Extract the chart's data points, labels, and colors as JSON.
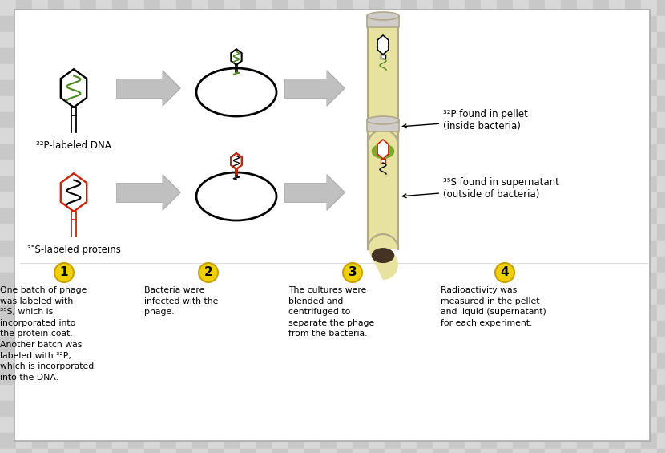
{
  "checker_light": "#d8d8d8",
  "checker_dark": "#c8c8c8",
  "panel_bg": "#ffffff",
  "border_color": "#999999",
  "arrow_color": "#b8b8b8",
  "black": "#000000",
  "red": "#cc2200",
  "green_dna": "#4a8a20",
  "yellow_circle": "#f0d000",
  "yellow_border": "#c8a000",
  "tube_fill": "#e8e2a0",
  "tube_border": "#b0a888",
  "tube_cap": "#d0cccc",
  "green_blob": "#7aaa30",
  "dark_blob": "#443322",
  "step_labels": [
    "1",
    "2",
    "3",
    "4"
  ],
  "step_texts": [
    "One batch of phage\nwas labeled with\n³⁵S, which is\nincorporated into\nthe protein coat.\nAnother batch was\nlabeled with ³²P,\nwhich is incorporated\ninto the DNA.",
    "Bacteria were\ninfected with the\nphage.",
    "The cultures were\nblended and\ncentrifuged to\nseparate the phage\nfrom the bacteria.",
    "Radioactivity was\nmeasured in the pellet\nand liquid (supernatant)\nfor each experiment."
  ],
  "label_32P": "³²P-labeled DNA",
  "label_35S": "³⁵S-labeled proteins",
  "annotation_32P": "³²P found in pellet\n(inside bacteria)",
  "annotation_35S": "³⁵S found in supernatant\n(outside of bacteria)",
  "figwidth": 8.3,
  "figheight": 5.65,
  "dpi": 100
}
